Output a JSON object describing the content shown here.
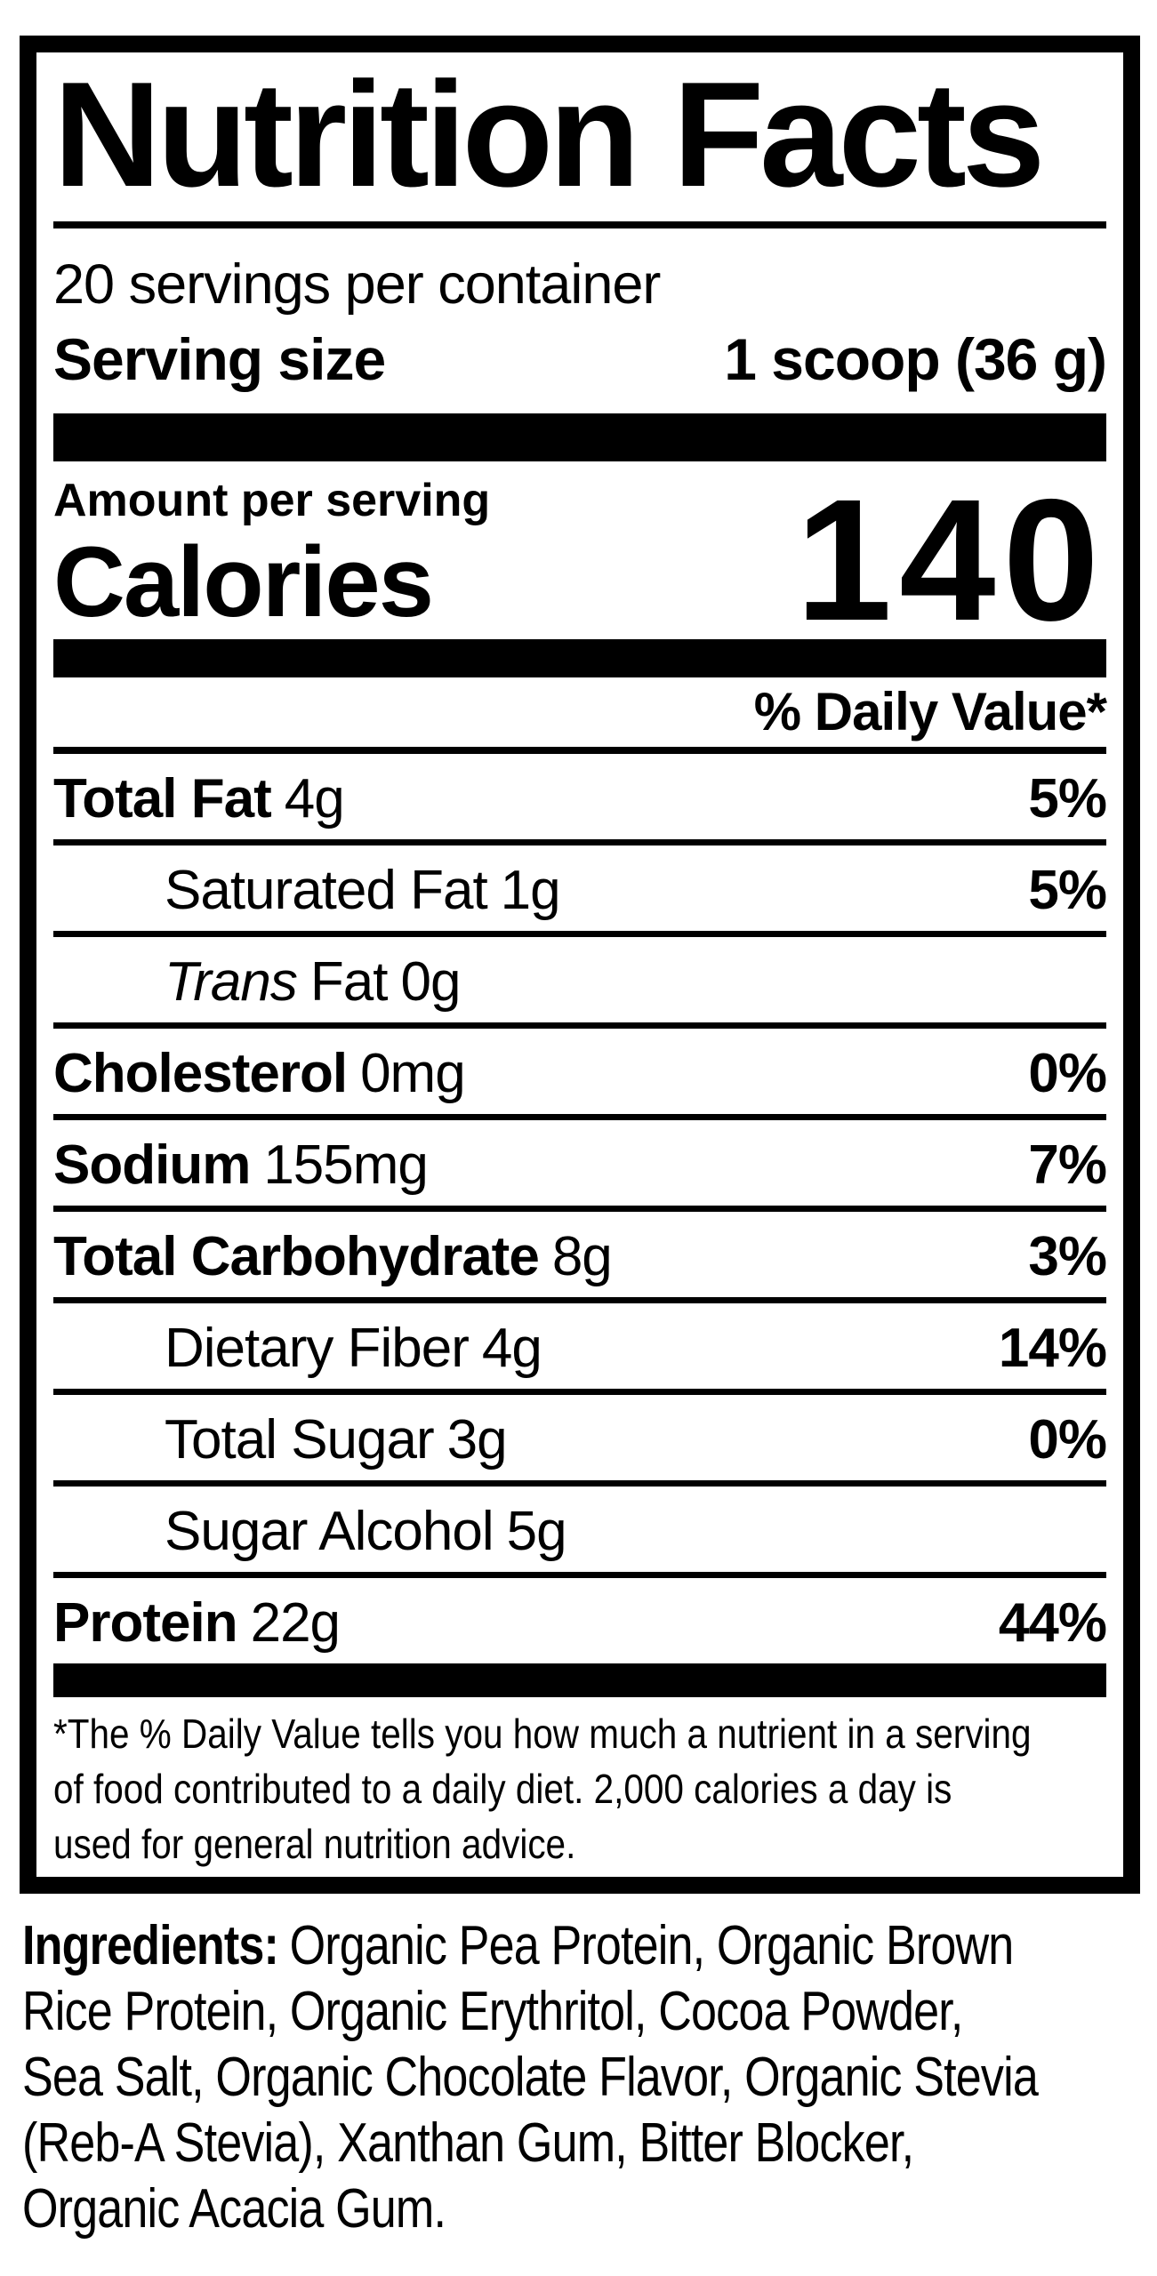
{
  "colors": {
    "ink": "#000000",
    "paper": "#ffffff"
  },
  "label": {
    "title": "Nutrition Facts",
    "servings_per_container": "20 servings per container",
    "serving_size_label": "Serving size",
    "serving_size_value": "1 scoop (36 g)",
    "amount_per_serving": "Amount per serving",
    "calories_label": "Calories",
    "calories_value": "140",
    "daily_value_header": "% Daily Value*",
    "rows": [
      {
        "name": "Total Fat",
        "amount": "4g",
        "dv": "5%"
      },
      {
        "name": "Saturated Fat",
        "amount": "1g",
        "dv": "5%"
      },
      {
        "name_italic": "Trans",
        "name": "Fat",
        "amount": "0g",
        "dv": ""
      },
      {
        "name": "Cholesterol",
        "amount": "0mg",
        "dv": "0%"
      },
      {
        "name": "Sodium",
        "amount": "155mg",
        "dv": "7%"
      },
      {
        "name": "Total Carbohydrate",
        "amount": "8g",
        "dv": "3%"
      },
      {
        "name": "Dietary Fiber",
        "amount": "4g",
        "dv": "14%"
      },
      {
        "name": "Total Sugar",
        "amount": "3g",
        "dv": "0%"
      },
      {
        "name": "Sugar Alcohol",
        "amount": "5g",
        "dv": ""
      },
      {
        "name": "Protein",
        "amount": "22g",
        "dv": "44%"
      }
    ],
    "footnote_lines": [
      "*The % Daily Value tells you how much a nutrient in a serving",
      "of food contributed to a daily diet. 2,000 calories a day is",
      "used for general nutrition advice."
    ]
  },
  "ingredients": {
    "label": "Ingredients:",
    "lines": [
      "Organic Pea Protein, Organic Brown",
      "Rice Protein, Organic Erythritol, Cocoa Powder,",
      "Sea Salt, Organic Chocolate Flavor, Organic Stevia",
      "(Reb-A Stevia), Xanthan Gum, Bitter Blocker,",
      "Organic Acacia Gum."
    ]
  }
}
